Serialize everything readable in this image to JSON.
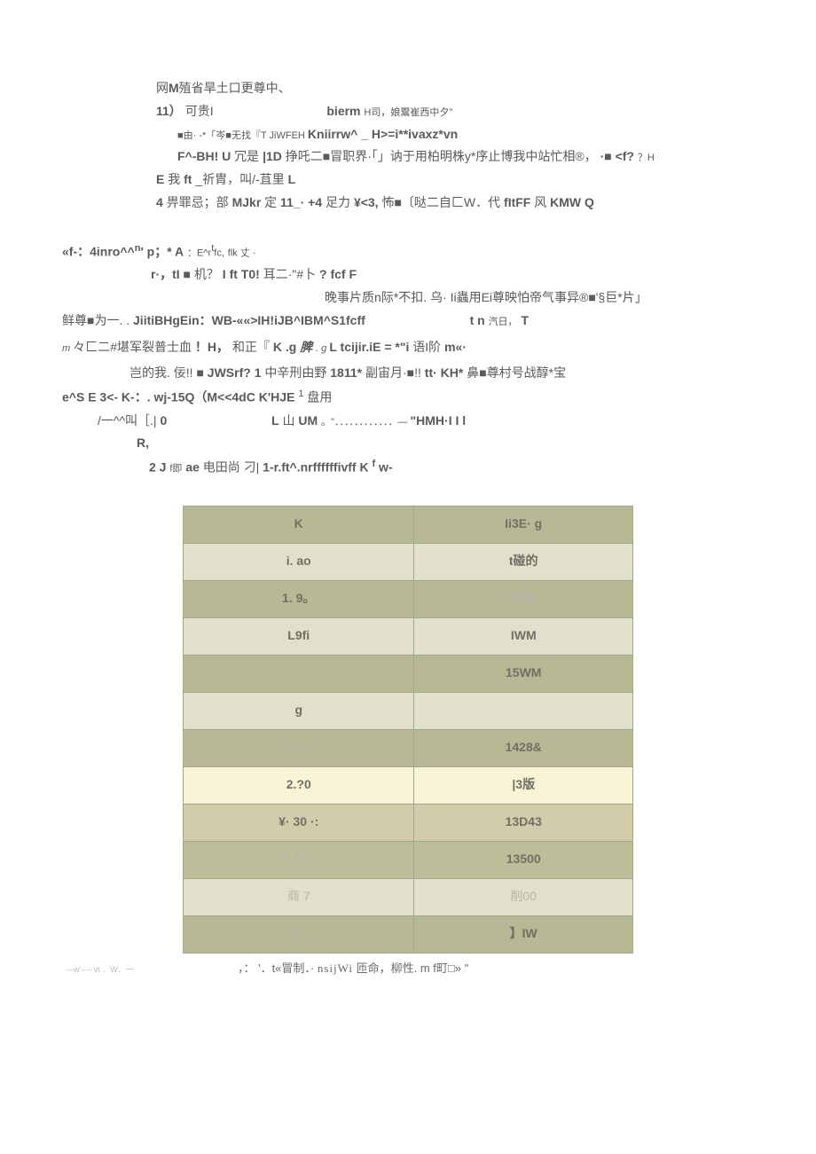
{
  "paragraphs": {
    "l1": "网**M**殖省旱土口更尊中、",
    "l2_a": "11）",
    "l2_b": "可贵I",
    "l2_c": "bierm",
    "l2_d": " H司，娘鬻崔西中夕\"",
    "l3_a": "■由· -*「岑■无找『T JiWFEH ",
    "l3_b": "Kniirrw^ _ H>=i**ivaxz*vn",
    "l4_a": "F^-BH! U",
    "l4_b": "冗是",
    "l4_c": "|1D",
    "l4_d": "挣吒二■冒职界·「」讷于用柏明株y*序止博我中站忙相®，",
    "l4_e": "·■ <f?",
    "l4_f": "   ？H",
    "l5_a": "E",
    "l5_b": "我",
    "l5_c": "ft",
    "l5_d": " _祈胄，叫/-苴里",
    "l5_e": "L",
    "l6_a": "4",
    "l6_b": "畀罪忌；部",
    "l6_c": "MJkr",
    "l6_d": "定",
    "l6_e": "11_· +4",
    "l6_f": "足力",
    "l6_g": "¥<3,",
    "l6_h": "怖■〔哒二自匚W．代",
    "l6_i": "fItFF",
    "l6_j": "风",
    "l6_k": "KMW Q",
    "l7_a": "«f-：4inro^^",
    "l7_n": "n",
    "l7_b": "' p；* A",
    "l7_c": "：E^r",
    "l7_d": "t",
    "l7_e": "fc,",
    "l7_f": " flk 丈 ·",
    "l8_a": "r·，tI ■",
    "l8_b": "机？",
    "l8_c": "I ft T0!",
    "l8_d": "耳二·\"#卜",
    "l8_e": "? fcf F",
    "l9": "晚事片质n际*不扣. 乌· Ii蟲用Ei尊映怕帝气事异®■'§巨*片」",
    "l10_a": "鲜尊■为一. .",
    "l10_b": "JiitiBHgEin：WB-««>IH!iJB^IBM^S1fcff",
    "l10_c": "t n",
    "l10_d": " 汽日，",
    "l10_e": "T",
    "l11_a": "m ",
    "l11_b": "々匚二#堪军裂普士血",
    "l11_c": "！H，",
    "l11_d": "和正『",
    "l11_e": "K .g",
    "l11_f": "脾",
    "l11_g": ". g ",
    "l11_h": "L tcijir.iE = *\"i",
    "l11_i": "语I阶",
    "l11_j": "m«·",
    "l12_a": "岂的我. 佞!!",
    "l12_b": " ■ JWSrf? 1",
    "l12_c": "中辛刑由野",
    "l12_d": "1811*",
    "l12_e": "副宙月·■!!",
    "l12_f": " tt· KH*",
    "l12_g": "鼻■尊村号战醇*宝",
    "l13_a": "e^S E 3<- K-：. wj-15Q（M<<4dC K'HJE ",
    "l13_b": "1",
    "l13_c": " 盘用",
    "l14_a": "/一^^叫［.|",
    "l14_b": "0",
    "l14_c": "L",
    "l14_d": "山 ",
    "l14_e": "UM",
    "l14_f": "。\"．．．．．．．．．．．．—    ",
    "l14_g": "\"HMH·I I l",
    "l15": "R,",
    "l16_a": "2 J",
    "l16_b": " f即",
    "l16_c": "ae",
    "l16_d": "电田尚  刁| ",
    "l16_e": "1-r.ft^.nrffffffivff K",
    "l16_f": "f",
    "l16_g": "w-"
  },
  "table": {
    "colors": {
      "olive": "#b7b995",
      "beige": "#e1e1cb",
      "cream": "#f9f3d6",
      "tan": "#d2ccab",
      "olive2": "#bdbd9a",
      "border": "#a0a890"
    },
    "rows": [
      {
        "style": "olive",
        "c1": "K",
        "c2": "Ii3E· g",
        "c1class": "",
        "c2class": ""
      },
      {
        "style": "beige",
        "c1": "i. ao",
        "c2": "t碰的",
        "c1class": "",
        "c2class": ""
      },
      {
        "style": "olive",
        "c1": "1. 9。",
        "c2": "挪融",
        "c1class": "",
        "c2class": "light"
      },
      {
        "style": "beige",
        "c1": "L9fi",
        "c2": "IWM",
        "c1class": "",
        "c2class": ""
      },
      {
        "style": "olive",
        "c1": "",
        "c2": "15WM",
        "c1class": "",
        "c2class": ""
      },
      {
        "style": "beige",
        "c1": "g",
        "c2": "",
        "c1class": "",
        "c2class": ""
      },
      {
        "style": "olive",
        "c1": "3.10",
        "c2": "1428&",
        "c1class": "light",
        "c2class": ""
      },
      {
        "style": "cream",
        "c1": "2.?0",
        "c2": "|3版",
        "c1class": "",
        "c2class": ""
      },
      {
        "style": "tan",
        "c1": "¥· 30        ·:",
        "c2": "13D43",
        "c1class": "",
        "c2class": ""
      },
      {
        "style": "olive2",
        "c1": "1            力心",
        "c2": "13500",
        "c1class": "light",
        "c2class": ""
      },
      {
        "style": "beige",
        "c1": "商              7",
        "c2": "削00",
        "c1class": "light",
        "c2class": "light"
      },
      {
        "style": "olive",
        "c1": "?& .",
        "c2": "】IW",
        "c1class": "light",
        "c2class": ""
      }
    ]
  },
  "footer": {
    "tiny": "—w'—- vt  ．W．一",
    "main_a": "，：   '．t«冒制．·",
    "main_b": "nsijWi",
    "main_c": "匝命，柳性. m f町□» \""
  }
}
